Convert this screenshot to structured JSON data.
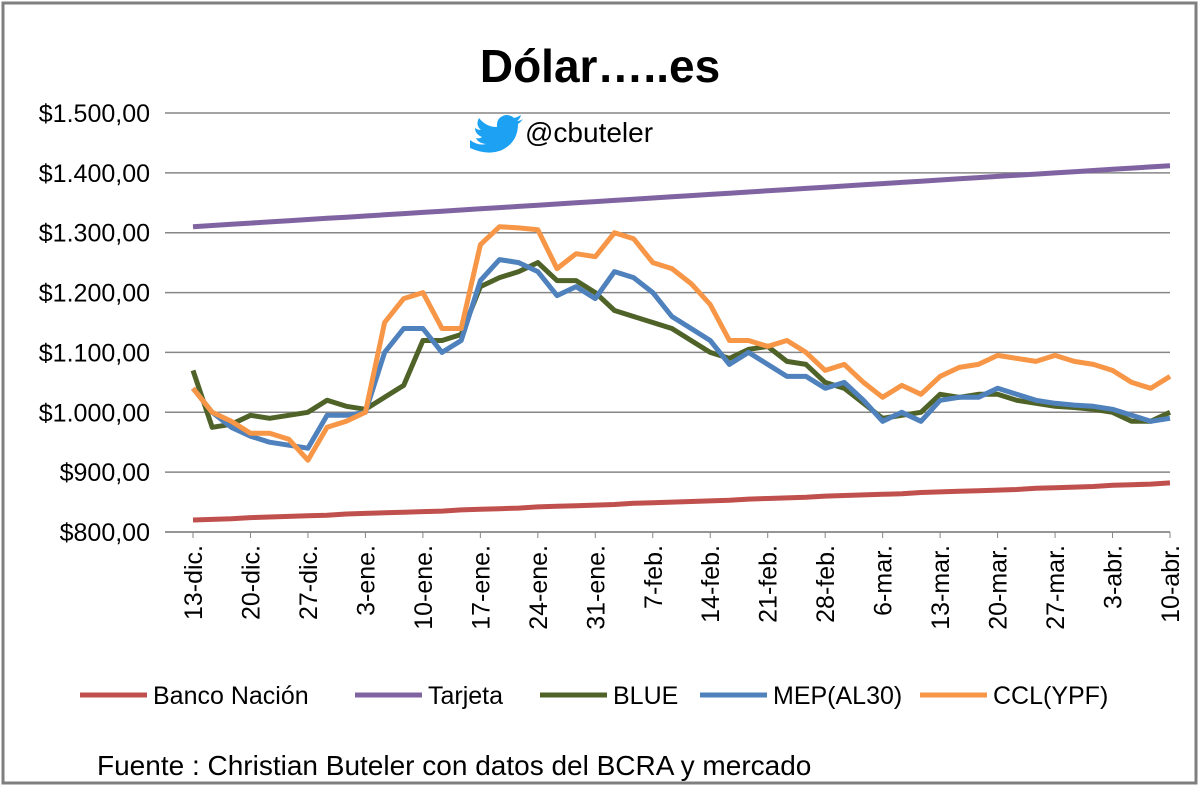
{
  "chart_data": {
    "type": "line",
    "title": "Dólar…..es",
    "subtitle": "@cbuteler",
    "source": "Fuente : Christian Buteler con datos del BCRA y mercado",
    "categories": [
      "13-dic.",
      null,
      null,
      "20-dic.",
      null,
      null,
      "27-dic.",
      null,
      null,
      "3-ene.",
      null,
      null,
      "10-ene.",
      null,
      null,
      "17-ene.",
      null,
      null,
      "24-ene.",
      null,
      null,
      "31-ene.",
      null,
      null,
      "7-feb.",
      null,
      null,
      "14-feb.",
      null,
      null,
      "21-feb.",
      null,
      null,
      "28-feb.",
      null,
      null,
      "6-mar.",
      null,
      null,
      "13-mar.",
      null,
      null,
      "20-mar.",
      null,
      null,
      "27-mar.",
      null,
      null,
      "3-abr.",
      null,
      null,
      "10-abr."
    ],
    "ylim": [
      800,
      1500
    ],
    "yticks": [
      {
        "value": 800,
        "label": "$800,00"
      },
      {
        "value": 900,
        "label": "$900,00"
      },
      {
        "value": 1000,
        "label": "$1.000,00"
      },
      {
        "value": 1100,
        "label": "$1.100,00"
      },
      {
        "value": 1200,
        "label": "$1.200,00"
      },
      {
        "value": 1300,
        "label": "$1.300,00"
      },
      {
        "value": 1400,
        "label": "$1.400,00"
      },
      {
        "value": 1500,
        "label": "$1.500,00"
      }
    ],
    "grid": true,
    "legend": "bottom",
    "series": [
      {
        "name": "Banco Nación",
        "color": "#c0504d",
        "values": [
          820,
          821,
          822,
          824,
          825,
          826,
          827,
          828,
          830,
          831,
          832,
          833,
          834,
          835,
          837,
          838,
          839,
          840,
          842,
          843,
          844,
          845,
          846,
          848,
          849,
          850,
          851,
          852,
          853,
          855,
          856,
          857,
          858,
          860,
          861,
          862,
          863,
          864,
          866,
          867,
          868,
          869,
          870,
          871,
          873,
          874,
          875,
          876,
          878,
          879,
          880,
          882
        ]
      },
      {
        "name": "Tarjeta",
        "color": "#8064a2",
        "values": [
          1310,
          1312,
          1314,
          1316,
          1318,
          1320,
          1322,
          1324,
          1326,
          1328,
          1330,
          1332,
          1334,
          1336,
          1338,
          1340,
          1342,
          1344,
          1346,
          1348,
          1350,
          1352,
          1354,
          1356,
          1358,
          1360,
          1362,
          1364,
          1366,
          1368,
          1370,
          1372,
          1374,
          1376,
          1378,
          1380,
          1382,
          1384,
          1386,
          1388,
          1390,
          1392,
          1394,
          1396,
          1398,
          1400,
          1402,
          1404,
          1406,
          1408,
          1410,
          1412
        ]
      },
      {
        "name": "BLUE",
        "color": "#4f6228",
        "values": [
          1070,
          975,
          980,
          995,
          990,
          995,
          1000,
          1020,
          1010,
          1005,
          1025,
          1045,
          1120,
          1120,
          1130,
          1210,
          1225,
          1235,
          1250,
          1220,
          1220,
          1200,
          1170,
          1160,
          1150,
          1140,
          1120,
          1100,
          1090,
          1105,
          1110,
          1085,
          1080,
          1050,
          1040,
          1015,
          990,
          995,
          1000,
          1030,
          1025,
          1030,
          1030,
          1020,
          1015,
          1010,
          1008,
          1005,
          1000,
          985,
          985,
          1000
        ]
      },
      {
        "name": "MEP(AL30)",
        "color": "#4f81bd",
        "values": [
          1040,
          1000,
          975,
          960,
          950,
          945,
          940,
          995,
          995,
          1000,
          1100,
          1140,
          1140,
          1100,
          1120,
          1220,
          1255,
          1250,
          1235,
          1195,
          1210,
          1190,
          1235,
          1225,
          1200,
          1160,
          1140,
          1120,
          1080,
          1100,
          1080,
          1060,
          1060,
          1040,
          1050,
          1020,
          985,
          1000,
          985,
          1020,
          1025,
          1025,
          1040,
          1030,
          1020,
          1015,
          1012,
          1010,
          1005,
          995,
          985,
          990
        ]
      },
      {
        "name": "CCL(YPF)",
        "color": "#f79646",
        "values": [
          1040,
          1000,
          985,
          965,
          965,
          955,
          920,
          975,
          985,
          1000,
          1150,
          1190,
          1200,
          1140,
          1140,
          1280,
          1310,
          1308,
          1305,
          1240,
          1265,
          1260,
          1300,
          1290,
          1250,
          1240,
          1215,
          1180,
          1120,
          1120,
          1110,
          1120,
          1100,
          1070,
          1080,
          1050,
          1025,
          1045,
          1030,
          1060,
          1075,
          1080,
          1095,
          1090,
          1085,
          1095,
          1085,
          1080,
          1070,
          1050,
          1040,
          1060
        ]
      }
    ]
  }
}
